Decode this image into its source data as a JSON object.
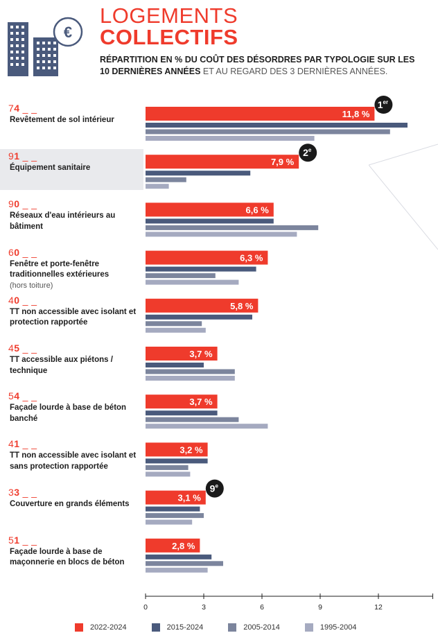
{
  "header": {
    "title_line1": "LOGEMENTS",
    "title_line2": "COLLECTIFS",
    "subtitle_bold": "RÉPARTITION EN % DU COÛT DES DÉSORDRES PAR TYPOLOGIE SUR LES 10 DERNIÈRES ANNÉES",
    "subtitle_light": " ET AU REGARD DES 3 DERNIÈRES ANNÉES.",
    "icon": "building-euro-icon"
  },
  "colors": {
    "accent": "#ef3b2c",
    "series": [
      "#ef3b2c",
      "#4a5a7c",
      "#7c859d",
      "#a5aac0"
    ]
  },
  "chart_data": {
    "type": "bar",
    "orientation": "horizontal",
    "xlim": [
      0,
      14
    ],
    "x_ticks": [
      0,
      3,
      6,
      9,
      12
    ],
    "grid": false,
    "legend_position": "bottom",
    "series": [
      {
        "name": "2022-2024"
      },
      {
        "name": "2015-2024"
      },
      {
        "name": "2005-2014"
      },
      {
        "name": "1995-2004"
      }
    ],
    "categories": [
      {
        "code_first": "7",
        "code_second": "4",
        "label": "Revêtement de sol intérieur",
        "note": "",
        "values": [
          11.8,
          13.5,
          12.6,
          8.7
        ],
        "value_label": "11,8 %",
        "rank": "1",
        "rank_suffix": "er",
        "highlight": false
      },
      {
        "code_first": "9",
        "code_second": "1",
        "label": "Équipement sanitaire",
        "note": "",
        "values": [
          7.9,
          5.4,
          2.1,
          1.2
        ],
        "value_label": "7,9 %",
        "rank": "2",
        "rank_suffix": "e",
        "highlight": true
      },
      {
        "code_first": "9",
        "code_second": "0",
        "label": "Réseaux d'eau intérieurs au bâtiment",
        "note": "",
        "values": [
          6.6,
          6.6,
          8.9,
          7.8
        ],
        "value_label": "6,6 %",
        "rank": "",
        "rank_suffix": "",
        "highlight": false
      },
      {
        "code_first": "6",
        "code_second": "0",
        "label": "Fenêtre et porte-fenêtre traditionnelles extérieures",
        "note": "(hors toiture)",
        "values": [
          6.3,
          5.7,
          3.6,
          4.8
        ],
        "value_label": "6,3 %",
        "rank": "",
        "rank_suffix": "",
        "highlight": false
      },
      {
        "code_first": "4",
        "code_second": "0",
        "label": "TT non accessible avec isolant et protection rapportée",
        "note": "",
        "values": [
          5.8,
          5.5,
          2.9,
          3.1
        ],
        "value_label": "5,8 %",
        "rank": "",
        "rank_suffix": "",
        "highlight": false
      },
      {
        "code_first": "4",
        "code_second": "5",
        "label": "TT accessible aux piétons / technique",
        "note": "",
        "values": [
          3.7,
          3.0,
          4.6,
          4.6
        ],
        "value_label": "3,7 %",
        "rank": "",
        "rank_suffix": "",
        "highlight": false
      },
      {
        "code_first": "5",
        "code_second": "4",
        "label": "Façade lourde à base de béton banché",
        "note": "",
        "values": [
          3.7,
          3.7,
          4.8,
          6.3
        ],
        "value_label": "3,7 %",
        "rank": "",
        "rank_suffix": "",
        "highlight": false
      },
      {
        "code_first": "4",
        "code_second": "1",
        "label": "TT non accessible avec isolant et sans protection rapportée",
        "note": "",
        "values": [
          3.2,
          3.2,
          2.2,
          2.3
        ],
        "value_label": "3,2 %",
        "rank": "",
        "rank_suffix": "",
        "highlight": false
      },
      {
        "code_first": "3",
        "code_second": "3",
        "label": "Couverture en grands éléments",
        "note": "",
        "values": [
          3.1,
          2.8,
          3.0,
          2.4
        ],
        "value_label": "3,1 %",
        "rank": "9",
        "rank_suffix": "e",
        "highlight": false
      },
      {
        "code_first": "5",
        "code_second": "1",
        "label": "Façade lourde à base de maçonnerie en blocs de béton",
        "note": "",
        "values": [
          2.8,
          3.4,
          4.0,
          3.2
        ],
        "value_label": "2,8 %",
        "rank": "",
        "rank_suffix": "",
        "highlight": false
      }
    ]
  }
}
